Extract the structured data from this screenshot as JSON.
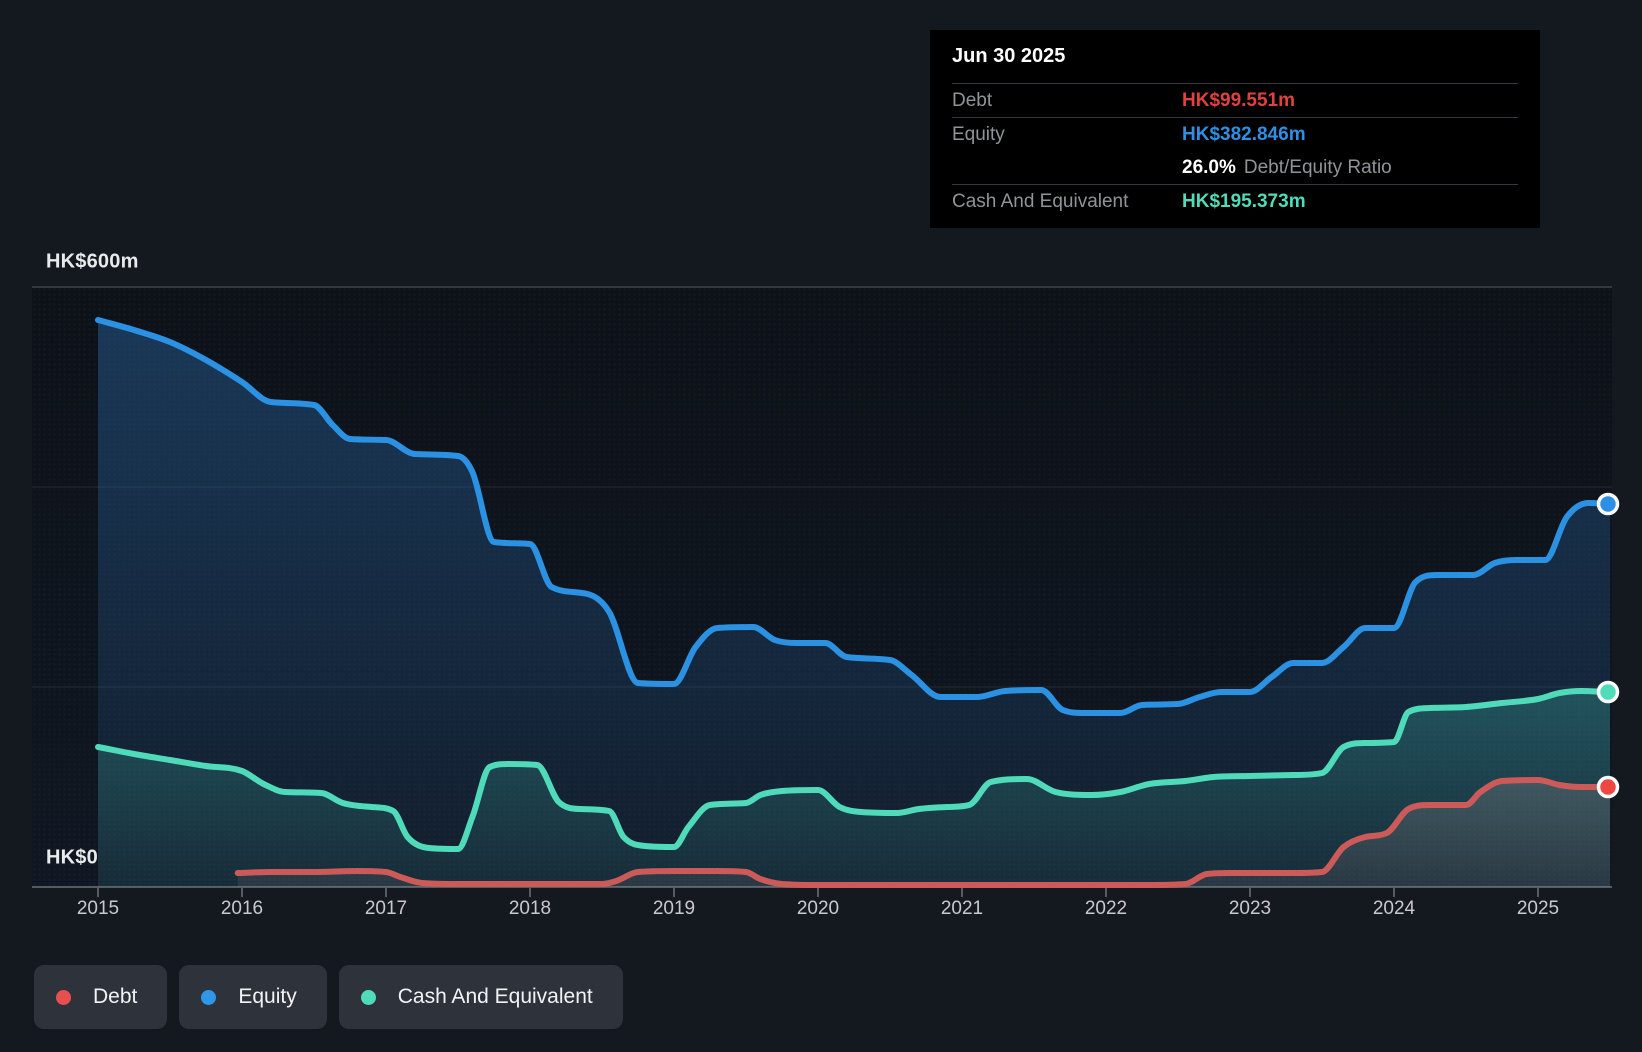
{
  "tooltip": {
    "date": "Jun 30 2025",
    "debt_label": "Debt",
    "debt_value": "HK$99.551m",
    "equity_label": "Equity",
    "equity_value": "HK$382.846m",
    "ratio_value": "26.0%",
    "ratio_label": "Debt/Equity Ratio",
    "cash_label": "Cash And Equivalent",
    "cash_value": "HK$195.373m",
    "colors": {
      "debt": "#e0423d",
      "equity": "#2d90e4",
      "cash": "#50dcba"
    }
  },
  "axis": {
    "y_top_label": "HK$600m",
    "y_bottom_label": "HK$0",
    "years": [
      "2015",
      "2016",
      "2017",
      "2018",
      "2019",
      "2020",
      "2021",
      "2022",
      "2023",
      "2024",
      "2025"
    ]
  },
  "legend": [
    {
      "label": "Debt",
      "color": "#e8504e"
    },
    {
      "label": "Equity",
      "color": "#2e97e8"
    },
    {
      "label": "Cash And Equivalent",
      "color": "#50dcba"
    }
  ],
  "chart_data": {
    "type": "area",
    "unit": "HK$ millions",
    "x_range": [
      2015,
      2025.5
    ],
    "ylim": [
      0,
      600
    ],
    "gridlines_m": [
      600,
      400,
      200,
      0
    ],
    "legend_position": "bottom-left",
    "series": [
      {
        "name": "Equity",
        "line_color": "#2b91e2",
        "fill_color": "45,115,185",
        "points": [
          [
            2015.0,
            567
          ],
          [
            2015.25,
            557
          ],
          [
            2015.5,
            545
          ],
          [
            2015.75,
            527
          ],
          [
            2016.0,
            505
          ],
          [
            2016.2,
            485
          ],
          [
            2016.5,
            482
          ],
          [
            2016.63,
            462
          ],
          [
            2016.75,
            448
          ],
          [
            2017.0,
            447
          ],
          [
            2017.2,
            433
          ],
          [
            2017.5,
            431
          ],
          [
            2017.6,
            415
          ],
          [
            2017.75,
            345
          ],
          [
            2018.0,
            343
          ],
          [
            2018.15,
            300
          ],
          [
            2018.4,
            293
          ],
          [
            2018.55,
            275
          ],
          [
            2018.75,
            204
          ],
          [
            2019.0,
            203
          ],
          [
            2019.15,
            240
          ],
          [
            2019.3,
            259
          ],
          [
            2019.55,
            260
          ],
          [
            2019.7,
            247
          ],
          [
            2019.85,
            244
          ],
          [
            2020.05,
            244
          ],
          [
            2020.2,
            230
          ],
          [
            2020.5,
            227
          ],
          [
            2020.65,
            212
          ],
          [
            2020.85,
            190
          ],
          [
            2021.1,
            190
          ],
          [
            2021.3,
            196
          ],
          [
            2021.55,
            197
          ],
          [
            2021.7,
            177
          ],
          [
            2021.85,
            174
          ],
          [
            2022.1,
            174
          ],
          [
            2022.25,
            182
          ],
          [
            2022.5,
            183
          ],
          [
            2022.65,
            190
          ],
          [
            2022.8,
            195
          ],
          [
            2023.0,
            195
          ],
          [
            2023.15,
            210
          ],
          [
            2023.3,
            224
          ],
          [
            2023.5,
            224
          ],
          [
            2023.65,
            240
          ],
          [
            2023.8,
            259
          ],
          [
            2024.0,
            259
          ],
          [
            2024.15,
            305
          ],
          [
            2024.3,
            312
          ],
          [
            2024.55,
            312
          ],
          [
            2024.7,
            324
          ],
          [
            2024.85,
            327
          ],
          [
            2025.05,
            327
          ],
          [
            2025.2,
            370
          ],
          [
            2025.35,
            384
          ],
          [
            2025.5,
            383
          ]
        ]
      },
      {
        "name": "Debt",
        "line_color": "#cc5a58",
        "fill_color": "215,160,165",
        "points": [
          [
            2015.97,
            14
          ],
          [
            2016.2,
            15
          ],
          [
            2016.5,
            15
          ],
          [
            2016.8,
            16
          ],
          [
            2017.0,
            15
          ],
          [
            2017.1,
            10
          ],
          [
            2017.25,
            4
          ],
          [
            2017.5,
            3
          ],
          [
            2018.0,
            3
          ],
          [
            2018.5,
            3
          ],
          [
            2018.6,
            6
          ],
          [
            2018.75,
            15
          ],
          [
            2019.0,
            16
          ],
          [
            2019.3,
            16
          ],
          [
            2019.5,
            15
          ],
          [
            2019.6,
            8
          ],
          [
            2019.75,
            3
          ],
          [
            2020.0,
            2
          ],
          [
            2020.5,
            2
          ],
          [
            2021.0,
            2
          ],
          [
            2021.5,
            2
          ],
          [
            2022.0,
            2
          ],
          [
            2022.3,
            2
          ],
          [
            2022.55,
            3
          ],
          [
            2022.7,
            13
          ],
          [
            2022.85,
            14
          ],
          [
            2023.3,
            14
          ],
          [
            2023.5,
            15
          ],
          [
            2023.65,
            40
          ],
          [
            2023.8,
            50
          ],
          [
            2023.95,
            54
          ],
          [
            2024.1,
            78
          ],
          [
            2024.25,
            82
          ],
          [
            2024.5,
            82
          ],
          [
            2024.6,
            95
          ],
          [
            2024.75,
            106
          ],
          [
            2025.0,
            107
          ],
          [
            2025.15,
            102
          ],
          [
            2025.3,
            100
          ],
          [
            2025.5,
            100
          ]
        ]
      },
      {
        "name": "Cash And Equivalent",
        "line_color": "#4fdbba",
        "fill_color": "70,205,185",
        "points": [
          [
            2015.0,
            140
          ],
          [
            2015.25,
            133
          ],
          [
            2015.5,
            127
          ],
          [
            2015.75,
            121
          ],
          [
            2016.0,
            116
          ],
          [
            2016.15,
            103
          ],
          [
            2016.3,
            95
          ],
          [
            2016.55,
            94
          ],
          [
            2016.7,
            84
          ],
          [
            2016.9,
            80
          ],
          [
            2017.05,
            76
          ],
          [
            2017.15,
            50
          ],
          [
            2017.3,
            39
          ],
          [
            2017.5,
            38
          ],
          [
            2017.6,
            70
          ],
          [
            2017.72,
            120
          ],
          [
            2017.85,
            123
          ],
          [
            2018.05,
            122
          ],
          [
            2018.2,
            85
          ],
          [
            2018.35,
            78
          ],
          [
            2018.55,
            76
          ],
          [
            2018.65,
            50
          ],
          [
            2018.8,
            41
          ],
          [
            2019.0,
            40
          ],
          [
            2019.1,
            60
          ],
          [
            2019.25,
            82
          ],
          [
            2019.5,
            84
          ],
          [
            2019.6,
            92
          ],
          [
            2019.75,
            96
          ],
          [
            2020.0,
            97
          ],
          [
            2020.15,
            80
          ],
          [
            2020.3,
            75
          ],
          [
            2020.55,
            74
          ],
          [
            2020.7,
            78
          ],
          [
            2020.9,
            80
          ],
          [
            2021.05,
            82
          ],
          [
            2021.2,
            105
          ],
          [
            2021.45,
            108
          ],
          [
            2021.65,
            95
          ],
          [
            2021.9,
            92
          ],
          [
            2022.1,
            95
          ],
          [
            2022.3,
            103
          ],
          [
            2022.55,
            106
          ],
          [
            2022.75,
            110
          ],
          [
            2023.0,
            111
          ],
          [
            2023.3,
            112
          ],
          [
            2023.5,
            114
          ],
          [
            2023.65,
            140
          ],
          [
            2023.8,
            144
          ],
          [
            2024.0,
            145
          ],
          [
            2024.1,
            175
          ],
          [
            2024.25,
            179
          ],
          [
            2024.5,
            180
          ],
          [
            2024.75,
            184
          ],
          [
            2025.0,
            188
          ],
          [
            2025.15,
            194
          ],
          [
            2025.3,
            196
          ],
          [
            2025.5,
            195
          ]
        ]
      }
    ],
    "end_markers": [
      {
        "series": "Equity",
        "x": 2025.5,
        "value": 383,
        "color": "#2d90e4"
      },
      {
        "series": "Cash And Equivalent",
        "x": 2025.5,
        "value": 195,
        "color": "#50dcba"
      },
      {
        "series": "Debt",
        "x": 2025.5,
        "value": 100,
        "color": "#ee4742"
      }
    ]
  }
}
